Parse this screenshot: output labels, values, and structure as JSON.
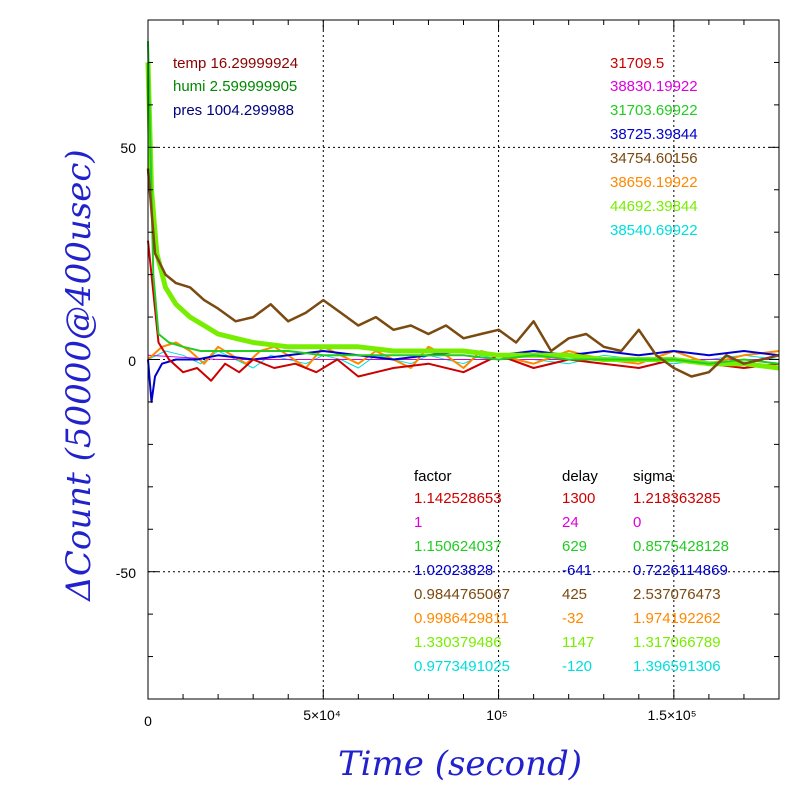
{
  "chart_data": {
    "type": "line",
    "xlabel": "Time (second)",
    "ylabel": "ΔCount (50000@400usec)",
    "xlim": [
      0,
      180000
    ],
    "ylim": [
      -80,
      80
    ],
    "grid": true,
    "x_tick_labels": [
      "0",
      "5×10⁴",
      "10⁵",
      "1.5×10⁵"
    ],
    "y_tick_labels": [
      "50",
      "0",
      "-50"
    ],
    "env": [
      {
        "text": "temp 16.29999924",
        "color": "#8b0000"
      },
      {
        "text": "humi 2.599999905",
        "color": "#008800"
      },
      {
        "text": "pres 1004.299988",
        "color": "#000080"
      }
    ],
    "base_counts": [
      {
        "text": "31709.5",
        "color": "#cc0000"
      },
      {
        "text": "38830.19922",
        "color": "#dd00dd"
      },
      {
        "text": "31703.69922",
        "color": "#22cc22"
      },
      {
        "text": "38725.39844",
        "color": "#0000cc"
      },
      {
        "text": "34754.60156",
        "color": "#7a4a10"
      },
      {
        "text": "38656.19922",
        "color": "#ff8800"
      },
      {
        "text": "44692.39844",
        "color": "#77ee00"
      },
      {
        "text": "38540.69922",
        "color": "#00dddd"
      }
    ],
    "table": {
      "headers": [
        "factor",
        "delay",
        "sigma"
      ],
      "rows": [
        {
          "factor": "1.142528653",
          "delay": "1300",
          "sigma": "1.218363285",
          "color": "#cc0000"
        },
        {
          "factor": "1",
          "delay": "24",
          "sigma": "0",
          "color": "#dd00dd"
        },
        {
          "factor": "1.150624037",
          "delay": "629",
          "sigma": "0.8575428128",
          "color": "#22cc22"
        },
        {
          "factor": "1.02023828",
          "delay": "-641",
          "sigma": "0.7226114869",
          "color": "#0000cc"
        },
        {
          "factor": "0.9844765067",
          "delay": "425",
          "sigma": "2.537076473",
          "color": "#7a4a10"
        },
        {
          "factor": "0.9986429811",
          "delay": "-32",
          "sigma": "1.974192262",
          "color": "#ff8800"
        },
        {
          "factor": "1.330379486",
          "delay": "1147",
          "sigma": "1.317066789",
          "color": "#77ee00"
        },
        {
          "factor": "0.9773491025",
          "delay": "-120",
          "sigma": "1.396591306",
          "color": "#00dddd"
        }
      ]
    },
    "series": [
      {
        "color": "#cc0000",
        "x": [
          0,
          3000,
          6000,
          10000,
          14000,
          18000,
          22000,
          26000,
          30000,
          36000,
          42000,
          48000,
          54000,
          60000,
          70000,
          80000,
          90000,
          100000,
          110000,
          120000,
          130000,
          140000,
          150000,
          160000,
          170000,
          180000
        ],
        "y": [
          28,
          4,
          0,
          -3,
          -2,
          -5,
          -1,
          -3,
          0,
          -2,
          -1,
          -3,
          0,
          -4,
          -2,
          -1,
          -3,
          1,
          -2,
          0,
          -1,
          -2,
          0,
          -1,
          -2,
          -1
        ]
      },
      {
        "color": "#dd00dd",
        "x": [
          0,
          20000,
          40000,
          60000,
          80000,
          100000,
          120000,
          140000,
          160000,
          180000
        ],
        "y": [
          1,
          0,
          0,
          0,
          0,
          0,
          0,
          0,
          0,
          0
        ]
      },
      {
        "color": "#22cc22",
        "x": [
          0,
          1500,
          3000,
          6000,
          10000,
          15000,
          20000,
          30000,
          40000,
          50000,
          60000,
          70000,
          80000,
          90000,
          100000,
          110000,
          120000,
          130000,
          140000,
          150000,
          160000,
          170000,
          180000
        ],
        "y": [
          75,
          20,
          6,
          4,
          3,
          2,
          2,
          2,
          2,
          1,
          1,
          1,
          1,
          1,
          0,
          1,
          0,
          0,
          0,
          0,
          -1,
          0,
          -1
        ]
      },
      {
        "color": "#0000cc",
        "x": [
          0,
          1000,
          2000,
          4000,
          8000,
          14000,
          20000,
          30000,
          40000,
          50000,
          60000,
          70000,
          80000,
          90000,
          100000,
          110000,
          120000,
          130000,
          140000,
          150000,
          160000,
          170000,
          180000
        ],
        "y": [
          0,
          -10,
          -4,
          -1,
          0,
          0,
          1,
          0,
          1,
          2,
          1,
          0,
          1,
          2,
          1,
          2,
          1,
          2,
          1,
          2,
          1,
          2,
          1
        ]
      },
      {
        "color": "#7a4a10",
        "x": [
          0,
          2000,
          5000,
          8000,
          12000,
          16000,
          20000,
          25000,
          30000,
          35000,
          40000,
          45000,
          50000,
          55000,
          60000,
          65000,
          70000,
          75000,
          80000,
          85000,
          90000,
          95000,
          100000,
          105000,
          110000,
          115000,
          120000,
          125000,
          130000,
          135000,
          140000,
          145000,
          150000,
          155000,
          160000,
          165000,
          170000,
          175000,
          180000
        ],
        "y": [
          45,
          25,
          20,
          18,
          17,
          14,
          12,
          9,
          10,
          13,
          9,
          11,
          14,
          11,
          8,
          10,
          7,
          8,
          6,
          8,
          5,
          6,
          7,
          4,
          9,
          2,
          5,
          6,
          3,
          2,
          7,
          1,
          -2,
          -4,
          -3,
          1,
          -1,
          0,
          1
        ]
      },
      {
        "color": "#ff8800",
        "x": [
          0,
          4000,
          8000,
          12000,
          16000,
          20000,
          24000,
          28000,
          32000,
          36000,
          40000,
          45000,
          50000,
          55000,
          60000,
          65000,
          70000,
          75000,
          80000,
          85000,
          90000,
          95000,
          100000,
          110000,
          120000,
          130000,
          140000,
          150000,
          160000,
          170000,
          180000
        ],
        "y": [
          0,
          3,
          4,
          2,
          -1,
          3,
          1,
          -1,
          2,
          3,
          1,
          -2,
          3,
          1,
          -1,
          2,
          0,
          -2,
          3,
          1,
          -2,
          2,
          1,
          -1,
          2,
          0,
          -1,
          2,
          -1,
          1,
          2
        ]
      },
      {
        "color": "#77ee00",
        "x": [
          0,
          1000,
          2500,
          5000,
          8000,
          12000,
          16000,
          20000,
          25000,
          30000,
          40000,
          50000,
          60000,
          70000,
          80000,
          90000,
          100000,
          110000,
          120000,
          130000,
          140000,
          150000,
          160000,
          170000,
          180000
        ],
        "y": [
          70,
          40,
          25,
          17,
          13,
          10,
          8,
          6,
          5,
          4,
          3,
          3,
          3,
          2,
          2,
          2,
          1,
          1,
          1,
          0,
          0,
          0,
          -1,
          -1,
          -2
        ]
      },
      {
        "color": "#00dddd",
        "x": [
          0,
          5000,
          10000,
          15000,
          20000,
          25000,
          30000,
          35000,
          40000,
          45000,
          50000,
          55000,
          60000,
          65000,
          70000,
          75000,
          80000,
          85000,
          90000,
          95000,
          100000,
          110000,
          120000,
          130000,
          140000,
          150000,
          160000,
          170000,
          180000
        ],
        "y": [
          0,
          2,
          1,
          -1,
          2,
          0,
          -2,
          1,
          0,
          -1,
          1,
          0,
          -2,
          1,
          0,
          -1,
          1,
          0,
          -1,
          1,
          0,
          0,
          -1,
          1,
          0,
          -1,
          0,
          1,
          0
        ]
      },
      {
        "color": "#000000",
        "x": [
          0,
          10000,
          20000,
          30000,
          40000,
          50000,
          60000,
          70000,
          80000,
          90000,
          100000,
          110000,
          120000,
          130000,
          140000,
          150000,
          160000,
          170000,
          180000
        ],
        "y": [
          2,
          -1,
          -2,
          -2,
          -3,
          -1,
          -2,
          -3,
          -1,
          -2,
          0,
          -1,
          -2,
          -1,
          1,
          -2,
          -1,
          0,
          -1
        ]
      }
    ]
  }
}
